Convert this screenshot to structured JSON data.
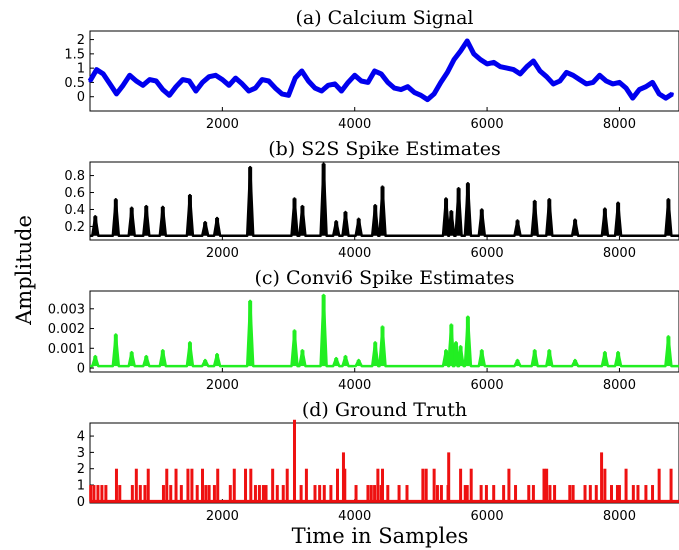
{
  "figure": {
    "ylabel": "Amplitude",
    "xlabel": "Time in Samples"
  },
  "chart_data": [
    {
      "type": "line",
      "title": "(a) Calcium Signal",
      "xlabel": "",
      "ylabel": "",
      "xlim": [
        0,
        8900
      ],
      "ylim": [
        -0.5,
        2.3
      ],
      "xticks": [
        2000,
        4000,
        6000,
        8000
      ],
      "xtick_labels": [
        "2000",
        "4000",
        "6000",
        "8000"
      ],
      "yticks": [
        0,
        0.5,
        1,
        1.5,
        2
      ],
      "ytick_labels": [
        "0",
        "0.5",
        "1",
        "1.5",
        "2"
      ],
      "grid": false,
      "color": "#0000ee",
      "series": [
        {
          "x": [
            0,
            100,
            200,
            300,
            400,
            500,
            600,
            700,
            800,
            900,
            1000,
            1100,
            1200,
            1300,
            1400,
            1500,
            1600,
            1700,
            1800,
            1900,
            2000,
            2100,
            2200,
            2300,
            2400,
            2500,
            2600,
            2700,
            2800,
            2900,
            3000,
            3100,
            3200,
            3300,
            3400,
            3500,
            3600,
            3700,
            3800,
            3900,
            4000,
            4100,
            4200,
            4300,
            4400,
            4500,
            4600,
            4700,
            4800,
            4900,
            5000,
            5100,
            5200,
            5300,
            5400,
            5500,
            5600,
            5700,
            5800,
            5900,
            6000,
            6100,
            6200,
            6300,
            6400,
            6500,
            6600,
            6700,
            6800,
            6900,
            7000,
            7100,
            7200,
            7300,
            7400,
            7500,
            7600,
            7700,
            7800,
            7900,
            8000,
            8100,
            8200,
            8300,
            8400,
            8500,
            8600,
            8700,
            8800
          ],
          "values": [
            0.55,
            0.95,
            0.8,
            0.45,
            0.1,
            0.4,
            0.75,
            0.55,
            0.4,
            0.6,
            0.55,
            0.25,
            0.05,
            0.35,
            0.6,
            0.55,
            0.2,
            0.5,
            0.7,
            0.75,
            0.6,
            0.4,
            0.65,
            0.45,
            0.2,
            0.3,
            0.6,
            0.55,
            0.3,
            0.1,
            0.05,
            0.65,
            0.9,
            0.55,
            0.3,
            0.2,
            0.4,
            0.45,
            0.2,
            0.5,
            0.75,
            0.55,
            0.5,
            0.9,
            0.8,
            0.5,
            0.3,
            0.25,
            0.35,
            0.15,
            0.05,
            -0.1,
            0.1,
            0.5,
            0.85,
            1.3,
            1.6,
            1.95,
            1.5,
            1.3,
            1.15,
            1.2,
            1.05,
            1.0,
            0.95,
            0.8,
            1.05,
            1.25,
            0.9,
            0.7,
            0.45,
            0.55,
            0.85,
            0.75,
            0.6,
            0.45,
            0.5,
            0.75,
            0.55,
            0.45,
            0.5,
            0.3,
            -0.05,
            0.25,
            0.35,
            0.5,
            0.1,
            -0.05,
            0.1
          ]
        }
      ]
    },
    {
      "type": "line",
      "title": "(b) S2S Spike Estimates",
      "xlabel": "",
      "ylabel": "",
      "xlim": [
        0,
        8900
      ],
      "ylim": [
        0.04,
        0.96
      ],
      "xticks": [
        2000,
        4000,
        6000,
        8000
      ],
      "xtick_labels": [
        "2000",
        "4000",
        "6000",
        "8000"
      ],
      "yticks": [
        0.2,
        0.4,
        0.6,
        0.8
      ],
      "ytick_labels": [
        "0.2",
        "0.4",
        "0.6",
        "0.8"
      ],
      "grid": false,
      "color": "#000000",
      "baseline": 0.09,
      "series": [
        {
          "x": [
            80,
            390,
            630,
            850,
            1100,
            1510,
            1740,
            1920,
            2420,
            3090,
            3210,
            3530,
            3720,
            3860,
            4060,
            4310,
            4420,
            5380,
            5460,
            5570,
            5710,
            5920,
            6460,
            6720,
            6940,
            7330,
            7780,
            7980,
            8740
          ],
          "values": [
            0.32,
            0.52,
            0.42,
            0.44,
            0.43,
            0.57,
            0.25,
            0.3,
            0.9,
            0.53,
            0.44,
            0.94,
            0.26,
            0.37,
            0.29,
            0.45,
            0.67,
            0.53,
            0.38,
            0.65,
            0.71,
            0.4,
            0.27,
            0.5,
            0.52,
            0.28,
            0.41,
            0.48,
            0.52
          ]
        }
      ]
    },
    {
      "type": "line",
      "title": "(c) Convi6 Spike Estimates",
      "xlabel": "",
      "ylabel": "",
      "xlim": [
        0,
        8900
      ],
      "ylim": [
        -0.0002,
        0.0039
      ],
      "xticks": [
        2000,
        4000,
        6000,
        8000
      ],
      "xtick_labels": [
        "2000",
        "4000",
        "6000",
        "8000"
      ],
      "yticks": [
        0,
        0.001,
        0.002,
        0.003
      ],
      "ytick_labels": [
        "0",
        "0.001",
        "0.002",
        "0.003"
      ],
      "grid": false,
      "color": "#22ee22",
      "baseline": 0.0001,
      "series": [
        {
          "x": [
            80,
            390,
            630,
            850,
            1100,
            1510,
            1740,
            1920,
            2420,
            3090,
            3210,
            3530,
            3720,
            3860,
            4060,
            4310,
            4420,
            5380,
            5460,
            5530,
            5600,
            5710,
            5920,
            6460,
            6720,
            6940,
            7330,
            7780,
            7980,
            8740
          ],
          "values": [
            0.0006,
            0.0017,
            0.0008,
            0.0006,
            0.0009,
            0.0013,
            0.0004,
            0.0007,
            0.0034,
            0.0019,
            0.0009,
            0.0037,
            0.0005,
            0.0006,
            0.0004,
            0.0013,
            0.0021,
            0.0009,
            0.0022,
            0.0013,
            0.0011,
            0.0026,
            0.0009,
            0.0004,
            0.0009,
            0.0009,
            0.0004,
            0.0008,
            0.0008,
            0.0016
          ]
        }
      ]
    },
    {
      "type": "bar",
      "title": "(d) Ground Truth",
      "xlabel": "",
      "ylabel": "",
      "xlim": [
        0,
        8900
      ],
      "ylim": [
        -0.1,
        4.8
      ],
      "xticks": [
        2000,
        4000,
        6000,
        8000
      ],
      "xtick_labels": [
        "2000",
        "4000",
        "6000",
        "8000"
      ],
      "yticks": [
        0,
        1,
        2,
        3,
        4
      ],
      "ytick_labels": [
        "0",
        "1",
        "2",
        "3",
        "4"
      ],
      "grid": false,
      "color": "#ee1111",
      "series": [
        {
          "x": [
            10,
            60,
            120,
            180,
            240,
            400,
            450,
            640,
            700,
            760,
            830,
            880,
            1110,
            1160,
            1220,
            1300,
            1380,
            1480,
            1540,
            1620,
            1700,
            1750,
            1800,
            1880,
            1930,
            2120,
            2180,
            2350,
            2430,
            2500,
            2560,
            2620,
            2660,
            2760,
            2830,
            2920,
            2980,
            3090,
            3190,
            3270,
            3400,
            3470,
            3540,
            3640,
            3740,
            3830,
            3850,
            4020,
            4200,
            4250,
            4300,
            4350,
            4400,
            4420,
            4500,
            4670,
            4790,
            5030,
            5080,
            5200,
            5250,
            5310,
            5410,
            5420,
            5600,
            5670,
            5700,
            5760,
            5910,
            5990,
            6100,
            6250,
            6330,
            6430,
            6630,
            6700,
            6860,
            6900,
            6950,
            7020,
            7250,
            7300,
            7480,
            7560,
            7650,
            7730,
            7780,
            7880,
            7970,
            8000,
            8100,
            8210,
            8280,
            8400,
            8500,
            8600,
            8780
          ],
          "values": [
            1,
            1,
            1,
            1,
            1,
            2,
            1,
            1,
            2,
            1,
            1,
            2,
            1,
            2,
            1,
            2,
            1,
            2,
            2,
            1,
            2,
            1,
            1,
            1,
            2,
            1,
            2,
            2,
            2,
            1,
            1,
            1,
            1,
            2,
            1,
            1,
            2,
            5,
            1,
            2,
            1,
            1,
            1,
            1,
            2,
            3,
            2,
            1,
            1,
            1,
            1,
            2,
            1,
            2,
            1,
            1,
            1,
            2,
            2,
            2,
            1,
            1,
            1,
            3,
            2,
            1,
            1,
            2,
            1,
            1,
            1,
            1,
            2,
            1,
            1,
            1,
            2,
            2,
            1,
            1,
            1,
            1,
            1,
            1,
            1,
            3,
            2,
            1,
            1,
            1,
            2,
            1,
            1,
            1,
            1,
            2,
            2
          ]
        }
      ]
    }
  ]
}
